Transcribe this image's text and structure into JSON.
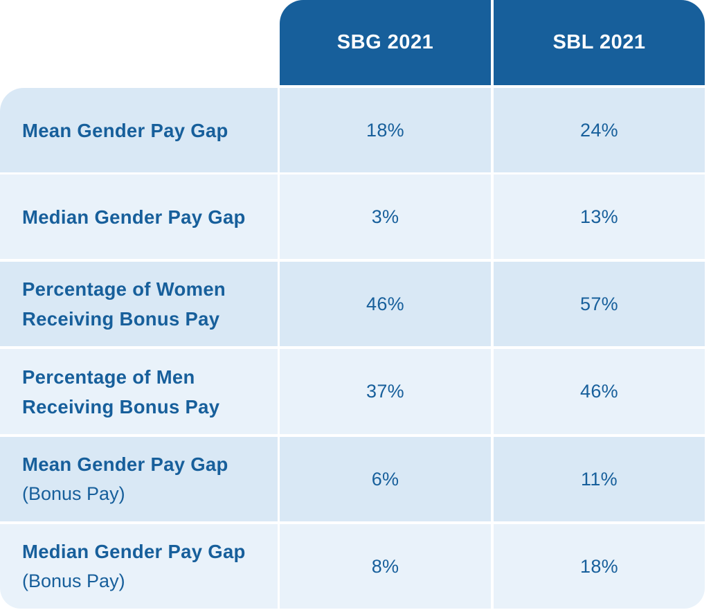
{
  "chart_data": {
    "type": "table",
    "columns": [
      "SBG 2021",
      "SBL 2021"
    ],
    "rows": [
      {
        "label": "Mean Gender Pay Gap",
        "sub": "",
        "values": [
          "18%",
          "24%"
        ]
      },
      {
        "label": "Median Gender Pay Gap",
        "sub": "",
        "values": [
          "3%",
          "13%"
        ]
      },
      {
        "label": "Percentage of Women Receiving Bonus Pay",
        "sub": "",
        "values": [
          "46%",
          "57%"
        ]
      },
      {
        "label": "Percentage of Men Receiving Bonus Pay",
        "sub": "",
        "values": [
          "37%",
          "46%"
        ]
      },
      {
        "label": "Mean Gender Pay Gap",
        "sub": "(Bonus Pay)",
        "values": [
          "6%",
          "11%"
        ]
      },
      {
        "label": "Median Gender Pay Gap",
        "sub": "(Bonus Pay)",
        "values": [
          "8%",
          "18%"
        ]
      }
    ]
  },
  "colors": {
    "header_bg": "#175f9b",
    "header_text": "#ffffff",
    "row_dark": "#d9e8f5",
    "row_light": "#e9f2fa",
    "text": "#175f9b"
  }
}
